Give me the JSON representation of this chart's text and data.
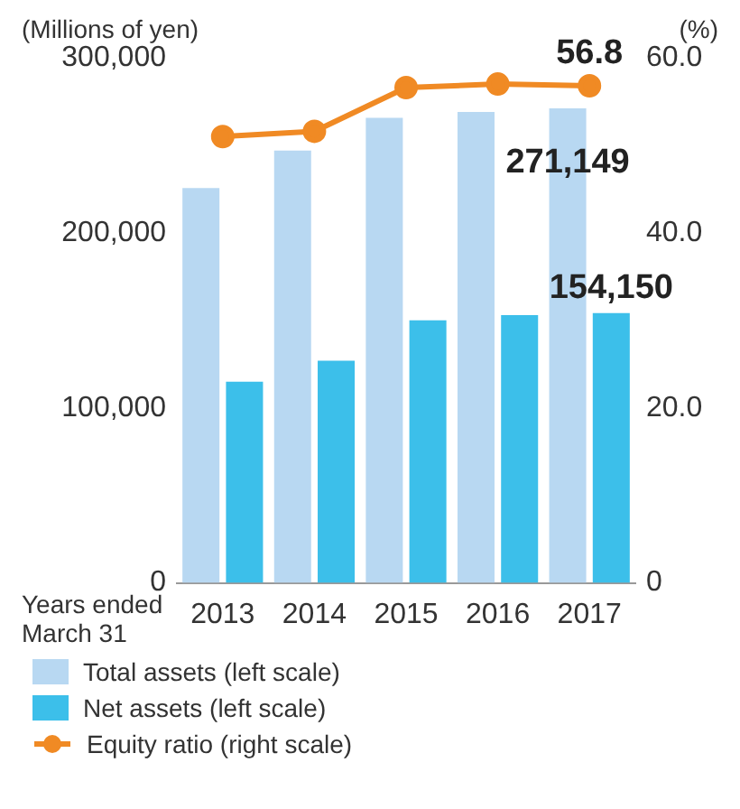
{
  "chart_data": {
    "type": "bar",
    "ylabel": "(Millions of yen)",
    "y2label": "(%)",
    "xlabel": "Years ended\nMarch 31",
    "categories": [
      "2013",
      "2014",
      "2015",
      "2016",
      "2017"
    ],
    "series": [
      {
        "name": "Total assets (left scale)",
        "color": "#b8d8f2",
        "values": [
          225600,
          247000,
          265700,
          269000,
          271149
        ],
        "value_labels": [
          null,
          null,
          null,
          null,
          "271,149"
        ]
      },
      {
        "name": "Net assets (left scale)",
        "color": "#3cbfea",
        "values": [
          115000,
          127000,
          150000,
          153000,
          154150
        ],
        "value_labels": [
          null,
          null,
          null,
          null,
          "154,150"
        ]
      },
      {
        "name": "Equity ratio (right scale)",
        "type": "line",
        "axis": "y2",
        "color": "#f08a24",
        "marker": "circle",
        "values": [
          51.0,
          51.6,
          56.6,
          57.0,
          56.8
        ],
        "value_labels": [
          null,
          null,
          null,
          null,
          "56.8"
        ]
      }
    ],
    "ylim": [
      0,
      300000
    ],
    "yticks": [
      {
        "value": 0,
        "label": "0"
      },
      {
        "value": 100000,
        "label": "100,000"
      },
      {
        "value": 200000,
        "label": "200,000"
      },
      {
        "value": 300000,
        "label": "300,000"
      }
    ],
    "y2lim": [
      0,
      60
    ],
    "y2ticks": [
      0,
      {
        "value": 20,
        "label": "20.0"
      },
      {
        "value": 40,
        "label": "40.0"
      },
      {
        "value": 60,
        "label": "60.0"
      }
    ],
    "grid": false,
    "legend": "bottom"
  }
}
